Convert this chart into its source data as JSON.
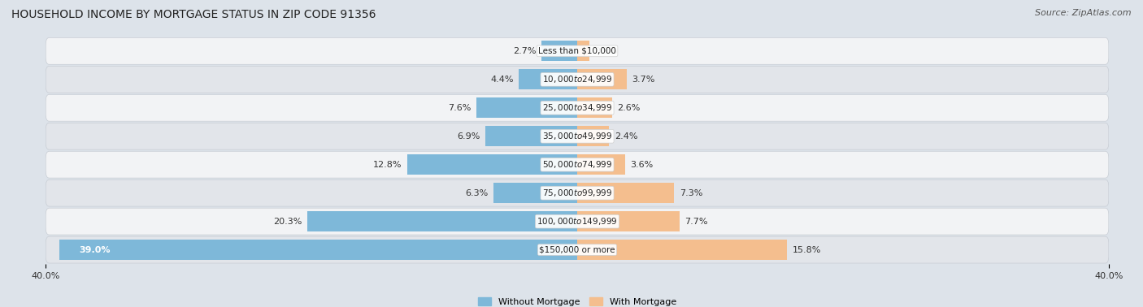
{
  "title": "HOUSEHOLD INCOME BY MORTGAGE STATUS IN ZIP CODE 91356",
  "source": "Source: ZipAtlas.com",
  "categories": [
    "Less than $10,000",
    "$10,000 to $24,999",
    "$25,000 to $34,999",
    "$35,000 to $49,999",
    "$50,000 to $74,999",
    "$75,000 to $99,999",
    "$100,000 to $149,999",
    "$150,000 or more"
  ],
  "without_mortgage": [
    2.7,
    4.4,
    7.6,
    6.9,
    12.8,
    6.3,
    20.3,
    39.0
  ],
  "with_mortgage": [
    0.9,
    3.7,
    2.6,
    2.4,
    3.6,
    7.3,
    7.7,
    15.8
  ],
  "without_mortgage_color": "#7eb8d9",
  "with_mortgage_color": "#f4be8e",
  "axis_max": 40.0,
  "fig_bg": "#dde3ea",
  "row_bg_light": "#f2f3f5",
  "row_bg_dark": "#e2e5ea",
  "legend_labels": [
    "Without Mortgage",
    "With Mortgage"
  ],
  "title_fontsize": 10,
  "source_fontsize": 8,
  "label_fontsize": 8,
  "cat_fontsize": 7.5
}
